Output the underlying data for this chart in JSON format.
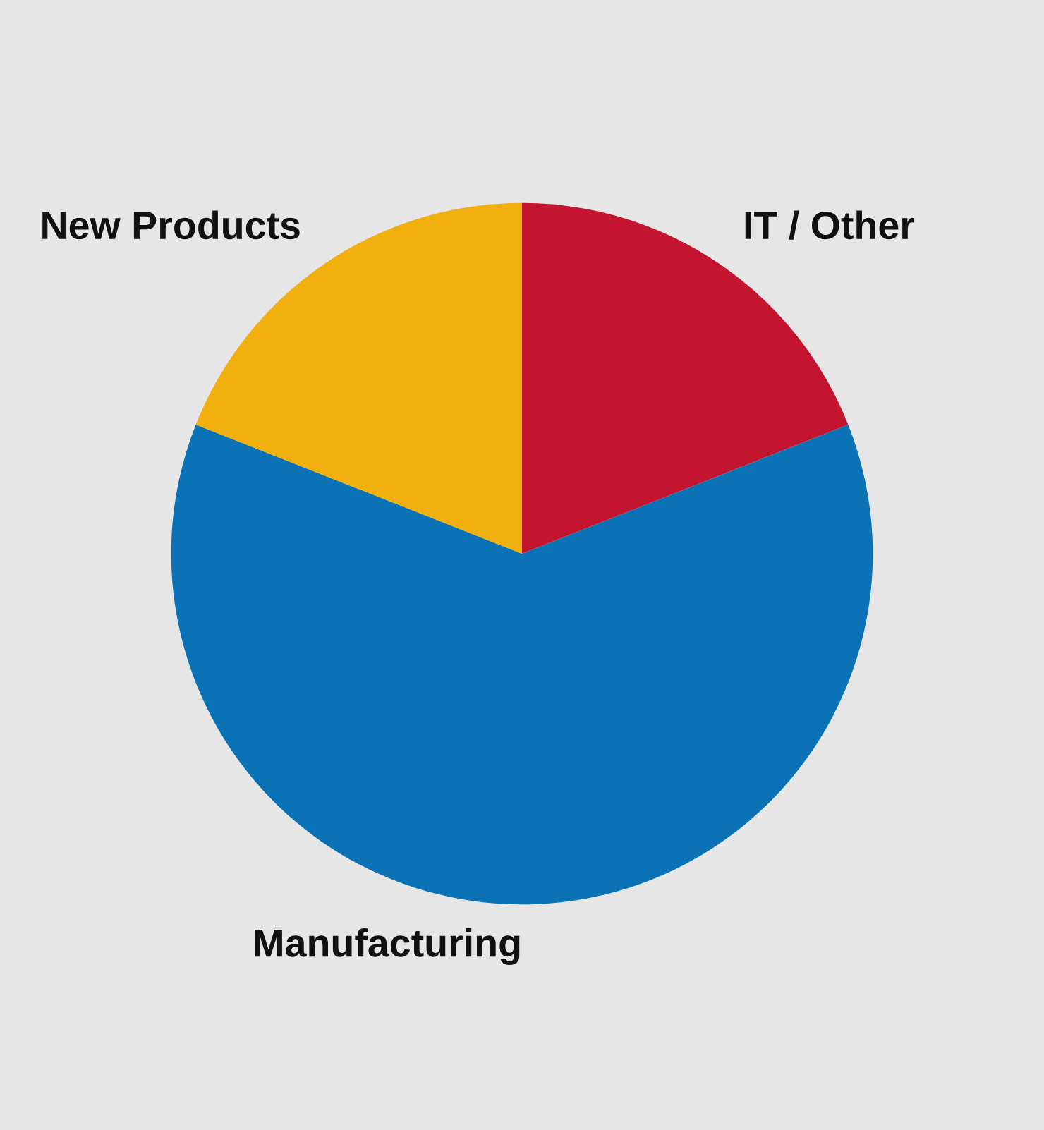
{
  "chart_data": {
    "type": "pie",
    "categories": [
      "IT / Other",
      "Manufacturing",
      "New Products"
    ],
    "values": [
      19,
      62,
      19
    ],
    "colors": [
      "#c41530",
      "#0a72b5",
      "#f2b00e"
    ],
    "legend": false
  }
}
